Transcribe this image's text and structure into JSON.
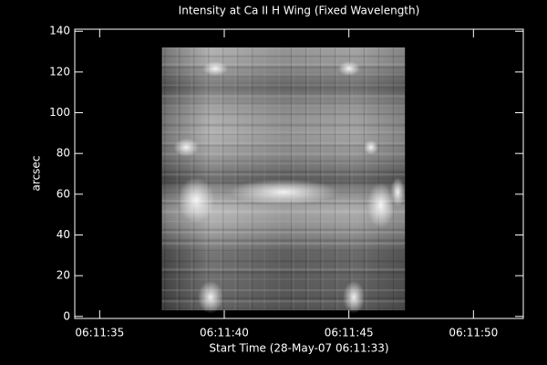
{
  "chart_data": {
    "type": "image",
    "title": "Intensity at Ca II H Wing (Fixed Wavelength)",
    "xlabel": "Start Time (28-May-07 06:11:33)",
    "ylabel": "arcsec",
    "xlim": [
      34,
      52
    ],
    "ylim": [
      -1,
      141
    ],
    "xticks": [
      {
        "value": 35,
        "label": "06:11:35"
      },
      {
        "value": 40,
        "label": "06:11:40"
      },
      {
        "value": 45,
        "label": "06:11:45"
      },
      {
        "value": 50,
        "label": "06:11:50"
      }
    ],
    "yticks": [
      0,
      20,
      40,
      60,
      80,
      100,
      120,
      140
    ],
    "x_extent": [
      37.5,
      47.25
    ],
    "y_extent": [
      3,
      132
    ]
  }
}
